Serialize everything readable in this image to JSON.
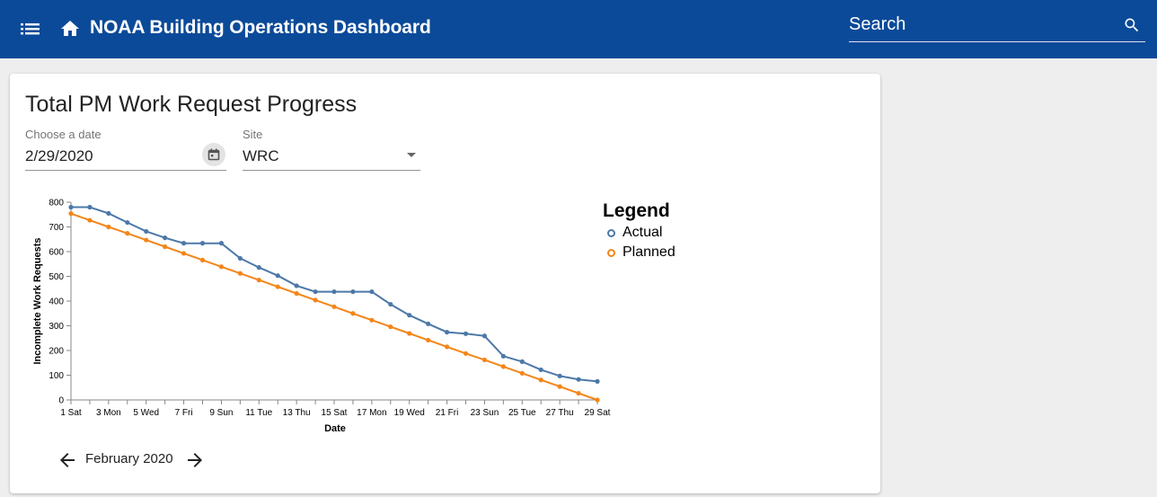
{
  "header": {
    "title": "NOAA Building Operations Dashboard",
    "search_placeholder": "Search"
  },
  "card": {
    "title": "Total PM Work Request Progress",
    "date_label": "Choose a date",
    "date_value": "2/29/2020",
    "site_label": "Site",
    "site_value": "WRC",
    "month_label": "February 2020"
  },
  "colors": {
    "header_bg": "#0b4a99",
    "actual": "#4c78a8",
    "planned": "#f58518"
  },
  "chart_data": {
    "type": "line",
    "title": "",
    "xlabel": "Date",
    "ylabel": "Incomplete Work Requests",
    "ylim": [
      0,
      800
    ],
    "yticks": [
      0,
      100,
      200,
      300,
      400,
      500,
      600,
      700,
      800
    ],
    "x": [
      1,
      2,
      3,
      4,
      5,
      6,
      7,
      8,
      9,
      10,
      11,
      12,
      13,
      14,
      15,
      16,
      17,
      18,
      19,
      20,
      21,
      22,
      23,
      24,
      25,
      26,
      27,
      28,
      29
    ],
    "xtick_labels": [
      "1 Sat",
      "3 Mon",
      "5 Wed",
      "7 Fri",
      "9 Sun",
      "11 Tue",
      "13 Thu",
      "15 Sat",
      "17 Mon",
      "19 Wed",
      "21 Fri",
      "23 Sun",
      "25 Tue",
      "27 Thu",
      "29 Sat"
    ],
    "legend_title": "Legend",
    "legend_position": "right",
    "grid": false,
    "series": [
      {
        "name": "Actual",
        "color": "#4c78a8",
        "values": [
          780,
          780,
          755,
          718,
          682,
          656,
          634,
          634,
          634,
          573,
          536,
          503,
          462,
          438,
          438,
          438,
          438,
          387,
          343,
          308,
          274,
          268,
          259,
          177,
          155,
          122,
          97,
          83,
          75
        ]
      },
      {
        "name": "Planned",
        "color": "#f58518",
        "values": [
          754,
          727,
          700,
          674,
          647,
          620,
          593,
          566,
          539,
          512,
          485,
          458,
          431,
          404,
          377,
          350,
          323,
          296,
          269,
          242,
          215,
          188,
          162,
          135,
          108,
          81,
          54,
          27,
          0
        ]
      }
    ]
  }
}
